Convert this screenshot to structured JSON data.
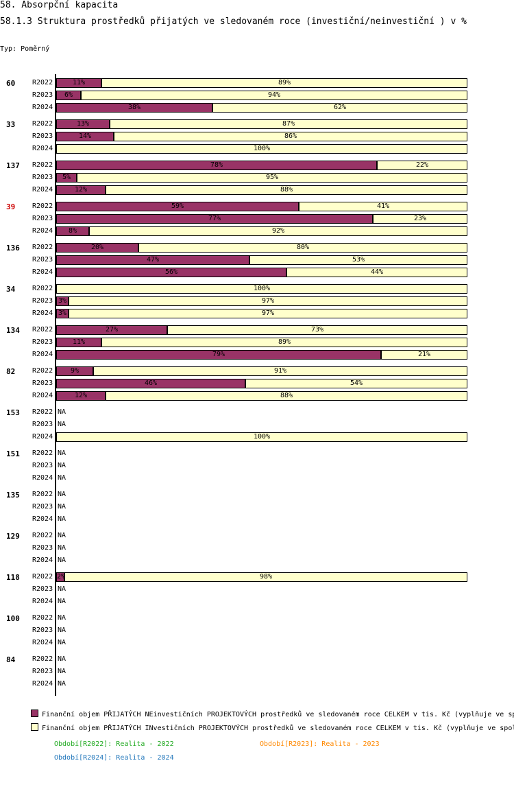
{
  "header": {
    "title": "58. Absorpční kapacita",
    "subtitle": "58.1.3 Struktura prostředků přijatých ve sledovaném roce (investiční/neinvestiční ) v %",
    "type_label": "Typ: Poměrný"
  },
  "chart_data": {
    "type": "bar",
    "orientation": "horizontal",
    "stacked": "percent",
    "xlim": [
      0,
      100
    ],
    "colors": {
      "neinvesticni": "#993366",
      "investicni": "#ffffcc",
      "highlight_label": "#cc0000"
    },
    "series": [
      {
        "name": "Finanční objem PŘIJATÝCH NEinvestičních PROJEKTOVÝCH prostředků ve sledovaném roce CELKEM v tis. Kč (vyplňuje ve sp"
      },
      {
        "name": "Finanční objem PŘIJATÝCH INvestičních PROJEKTOVÝCH prostředků ve sledovaném roce CELKEM v tis. Kč (vyplňuje ve spol"
      }
    ],
    "na_label": "NA",
    "groups": [
      {
        "label": "60",
        "highlight": false,
        "rows": [
          {
            "period": "R2022",
            "values": [
              11,
              89
            ]
          },
          {
            "period": "R2023",
            "values": [
              6,
              94
            ]
          },
          {
            "period": "R2024",
            "values": [
              38,
              62
            ]
          }
        ]
      },
      {
        "label": "33",
        "highlight": false,
        "rows": [
          {
            "period": "R2022",
            "values": [
              13,
              87
            ]
          },
          {
            "period": "R2023",
            "values": [
              14,
              86
            ]
          },
          {
            "period": "R2024",
            "values": [
              0,
              100
            ]
          }
        ]
      },
      {
        "label": "137",
        "highlight": false,
        "rows": [
          {
            "period": "R2022",
            "values": [
              78,
              22
            ]
          },
          {
            "period": "R2023",
            "values": [
              5,
              95
            ]
          },
          {
            "period": "R2024",
            "values": [
              12,
              88
            ]
          }
        ]
      },
      {
        "label": "39",
        "highlight": true,
        "rows": [
          {
            "period": "R2022",
            "values": [
              59,
              41
            ]
          },
          {
            "period": "R2023",
            "values": [
              77,
              23
            ]
          },
          {
            "period": "R2024",
            "values": [
              8,
              92
            ]
          }
        ]
      },
      {
        "label": "136",
        "highlight": false,
        "rows": [
          {
            "period": "R2022",
            "values": [
              20,
              80
            ]
          },
          {
            "period": "R2023",
            "values": [
              47,
              53
            ]
          },
          {
            "period": "R2024",
            "values": [
              56,
              44
            ]
          }
        ]
      },
      {
        "label": "34",
        "highlight": false,
        "rows": [
          {
            "period": "R2022",
            "values": [
              0,
              100
            ]
          },
          {
            "period": "R2023",
            "values": [
              3,
              97
            ]
          },
          {
            "period": "R2024",
            "values": [
              3,
              97
            ]
          }
        ]
      },
      {
        "label": "134",
        "highlight": false,
        "rows": [
          {
            "period": "R2022",
            "values": [
              27,
              73
            ]
          },
          {
            "period": "R2023",
            "values": [
              11,
              89
            ]
          },
          {
            "period": "R2024",
            "values": [
              79,
              21
            ]
          }
        ]
      },
      {
        "label": "82",
        "highlight": false,
        "rows": [
          {
            "period": "R2022",
            "values": [
              9,
              91
            ]
          },
          {
            "period": "R2023",
            "values": [
              46,
              54
            ]
          },
          {
            "period": "R2024",
            "values": [
              12,
              88
            ]
          }
        ]
      },
      {
        "label": "153",
        "highlight": false,
        "rows": [
          {
            "period": "R2022",
            "values": null
          },
          {
            "period": "R2023",
            "values": null
          },
          {
            "period": "R2024",
            "values": [
              0,
              100
            ]
          }
        ]
      },
      {
        "label": "151",
        "highlight": false,
        "rows": [
          {
            "period": "R2022",
            "values": null
          },
          {
            "period": "R2023",
            "values": null
          },
          {
            "period": "R2024",
            "values": null
          }
        ]
      },
      {
        "label": "135",
        "highlight": false,
        "rows": [
          {
            "period": "R2022",
            "values": null
          },
          {
            "period": "R2023",
            "values": null
          },
          {
            "period": "R2024",
            "values": null
          }
        ]
      },
      {
        "label": "129",
        "highlight": false,
        "rows": [
          {
            "period": "R2022",
            "values": null
          },
          {
            "period": "R2023",
            "values": null
          },
          {
            "period": "R2024",
            "values": null
          }
        ]
      },
      {
        "label": "118",
        "highlight": false,
        "rows": [
          {
            "period": "R2022",
            "values": [
              2,
              98
            ]
          },
          {
            "period": "R2023",
            "values": null
          },
          {
            "period": "R2024",
            "values": null
          }
        ]
      },
      {
        "label": "100",
        "highlight": false,
        "rows": [
          {
            "period": "R2022",
            "values": null
          },
          {
            "period": "R2023",
            "values": null
          },
          {
            "period": "R2024",
            "values": null
          }
        ]
      },
      {
        "label": "84",
        "highlight": false,
        "rows": [
          {
            "period": "R2022",
            "values": null
          },
          {
            "period": "R2023",
            "values": null
          },
          {
            "period": "R2024",
            "values": null
          }
        ]
      }
    ]
  },
  "periods": [
    {
      "text": "Období[R2022]: Realita - 2022",
      "color": "#22aa22"
    },
    {
      "text": "Období[R2023]: Realita - 2023",
      "color": "#ff8800"
    },
    {
      "text": "Období[R2024]: Realita - 2024",
      "color": "#2277bb"
    }
  ]
}
